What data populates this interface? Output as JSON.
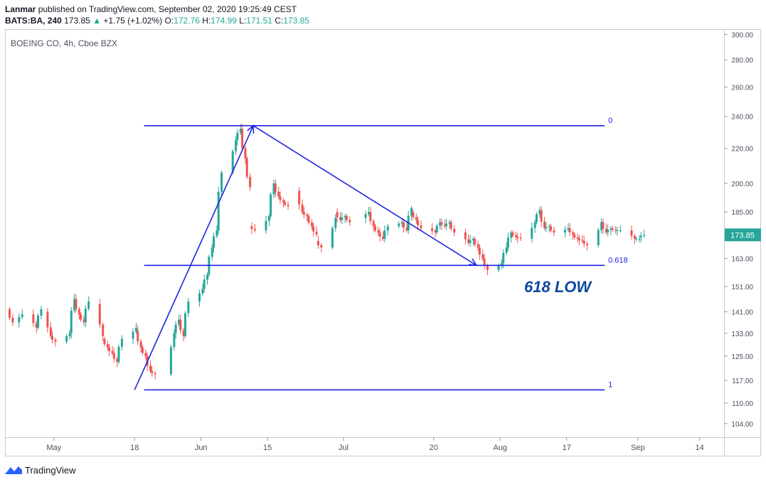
{
  "header": {
    "author": "Lanmar",
    "published_text": "published on TradingView.com, September 02, 2020 19:25:49 CEST",
    "symbol": "BATS:BA, 240",
    "last": "173.85",
    "change_arrow": "▲",
    "change": "+1.75 (+1.02%)",
    "o_label": "O:",
    "o": "172.76",
    "h_label": "H:",
    "h": "174.99",
    "l_label": "L:",
    "l": "171.51",
    "c_label": "C:",
    "c": "173.85"
  },
  "chart_title": "BOEING CO, 4h, Cboe BZX",
  "chart_data": {
    "type": "candlestick",
    "y_scale": "log",
    "ylim": [
      101,
      302
    ],
    "y_ticks": [
      104,
      110,
      117,
      125,
      133,
      141,
      151,
      163,
      174,
      185,
      200,
      220,
      240,
      260,
      280,
      300
    ],
    "y_tick_labels": [
      "104.00",
      "110.00",
      "117.00",
      "125.00",
      "133.00",
      "141.00",
      "151.00",
      "163.00",
      "",
      "185.00",
      "200.00",
      "220.00",
      "240.00",
      "260.00",
      "280.00",
      "300.00"
    ],
    "x_labels": [
      {
        "label": "May",
        "date": "2020-05-01"
      },
      {
        "label": "18",
        "date": "2020-05-18"
      },
      {
        "label": "Jun",
        "date": "2020-06-01"
      },
      {
        "label": "15",
        "date": "2020-06-15"
      },
      {
        "label": "Jul",
        "date": "2020-07-01"
      },
      {
        "label": "20",
        "date": "2020-07-20"
      },
      {
        "label": "Aug",
        "date": "2020-08-03"
      },
      {
        "label": "17",
        "date": "2020-08-17"
      },
      {
        "label": "Sep",
        "date": "2020-09-01"
      },
      {
        "label": "14",
        "date": "2020-09-14"
      }
    ],
    "last_price": "173.85",
    "colors": {
      "up": "#26a69a",
      "down": "#ef5350",
      "drawing": "#1f24e0",
      "label_blue": "#0d47a1",
      "price_tag": "#26a69a"
    },
    "fib_levels": [
      {
        "level": "0",
        "price": 234
      },
      {
        "level": "0.618",
        "price": 160
      },
      {
        "level": "1",
        "price": 114
      }
    ],
    "annotation": "618 LOW",
    "drawings": [
      {
        "type": "arrow",
        "from": {
          "date": "2020-05-18",
          "price": 114
        },
        "to": {
          "date": "2020-06-12",
          "price": 234
        }
      },
      {
        "type": "arrow",
        "from": {
          "date": "2020-06-12",
          "price": 234
        },
        "to": {
          "date": "2020-07-29",
          "price": 160
        }
      },
      {
        "type": "hline",
        "from_date": "2020-05-20",
        "to_date": "2020-08-25",
        "price": 234
      },
      {
        "type": "hline",
        "from_date": "2020-05-20",
        "to_date": "2020-08-25",
        "price": 160
      },
      {
        "type": "hline",
        "from_date": "2020-05-20",
        "to_date": "2020-08-25",
        "price": 114
      }
    ],
    "candles_by_day": [
      {
        "date": "2020-04-22",
        "o": 142,
        "c": 137
      },
      {
        "date": "2020-04-24",
        "o": 137,
        "c": 140
      },
      {
        "date": "2020-04-27",
        "o": 140,
        "c": 135
      },
      {
        "date": "2020-04-28",
        "o": 135,
        "c": 142
      },
      {
        "date": "2020-04-30",
        "o": 141,
        "c": 132
      },
      {
        "date": "2020-05-01",
        "o": 132,
        "c": 130
      },
      {
        "date": "2020-05-04",
        "o": 130,
        "c": 133
      },
      {
        "date": "2020-05-05",
        "o": 133,
        "c": 146
      },
      {
        "date": "2020-05-06",
        "o": 146,
        "c": 140
      },
      {
        "date": "2020-05-07",
        "o": 140,
        "c": 137
      },
      {
        "date": "2020-05-08",
        "o": 137,
        "c": 145
      },
      {
        "date": "2020-05-11",
        "o": 144,
        "c": 132
      },
      {
        "date": "2020-05-12",
        "o": 131,
        "c": 128
      },
      {
        "date": "2020-05-13",
        "o": 128,
        "c": 126
      },
      {
        "date": "2020-05-14",
        "o": 126,
        "c": 123
      },
      {
        "date": "2020-05-15",
        "o": 123,
        "c": 131
      },
      {
        "date": "2020-05-18",
        "o": 131,
        "c": 135
      },
      {
        "date": "2020-05-19",
        "o": 134,
        "c": 128
      },
      {
        "date": "2020-05-20",
        "o": 128,
        "c": 125
      },
      {
        "date": "2020-05-21",
        "o": 125,
        "c": 120
      },
      {
        "date": "2020-05-22",
        "o": 120,
        "c": 119
      },
      {
        "date": "2020-05-26",
        "o": 119,
        "c": 133
      },
      {
        "date": "2020-05-27",
        "o": 133,
        "c": 138
      },
      {
        "date": "2020-05-28",
        "o": 138,
        "c": 132
      },
      {
        "date": "2020-05-29",
        "o": 132,
        "c": 145
      },
      {
        "date": "2020-06-01",
        "o": 145,
        "c": 150
      },
      {
        "date": "2020-06-02",
        "o": 150,
        "c": 156
      },
      {
        "date": "2020-06-03",
        "o": 156,
        "c": 168
      },
      {
        "date": "2020-06-04",
        "o": 168,
        "c": 176
      },
      {
        "date": "2020-06-05",
        "o": 176,
        "c": 206
      },
      {
        "date": "2020-06-08",
        "o": 206,
        "c": 225
      },
      {
        "date": "2020-06-09",
        "o": 225,
        "c": 232
      },
      {
        "date": "2020-06-10",
        "o": 232,
        "c": 214
      },
      {
        "date": "2020-06-11",
        "o": 214,
        "c": 198
      },
      {
        "date": "2020-06-12",
        "o": 178,
        "c": 176
      },
      {
        "date": "2020-06-15",
        "o": 176,
        "c": 183
      },
      {
        "date": "2020-06-16",
        "o": 183,
        "c": 200
      },
      {
        "date": "2020-06-17",
        "o": 200,
        "c": 193
      },
      {
        "date": "2020-06-18",
        "o": 193,
        "c": 190
      },
      {
        "date": "2020-06-19",
        "o": 190,
        "c": 188
      },
      {
        "date": "2020-06-22",
        "o": 196,
        "c": 185
      },
      {
        "date": "2020-06-23",
        "o": 185,
        "c": 183
      },
      {
        "date": "2020-06-24",
        "o": 183,
        "c": 178
      },
      {
        "date": "2020-06-25",
        "o": 178,
        "c": 174
      },
      {
        "date": "2020-06-26",
        "o": 171,
        "c": 168
      },
      {
        "date": "2020-06-29",
        "o": 168,
        "c": 182
      },
      {
        "date": "2020-06-30",
        "o": 185,
        "c": 181
      },
      {
        "date": "2020-07-01",
        "o": 181,
        "c": 183
      },
      {
        "date": "2020-07-02",
        "o": 183,
        "c": 180
      },
      {
        "date": "2020-07-06",
        "o": 182,
        "c": 185
      },
      {
        "date": "2020-07-07",
        "o": 185,
        "c": 178
      },
      {
        "date": "2020-07-08",
        "o": 178,
        "c": 175
      },
      {
        "date": "2020-07-09",
        "o": 175,
        "c": 172
      },
      {
        "date": "2020-07-10",
        "o": 172,
        "c": 178
      },
      {
        "date": "2020-07-13",
        "o": 178,
        "c": 180
      },
      {
        "date": "2020-07-14",
        "o": 180,
        "c": 176
      },
      {
        "date": "2020-07-15",
        "o": 176,
        "c": 187
      },
      {
        "date": "2020-07-16",
        "o": 185,
        "c": 181
      },
      {
        "date": "2020-07-17",
        "o": 181,
        "c": 177
      },
      {
        "date": "2020-07-20",
        "o": 177,
        "c": 175
      },
      {
        "date": "2020-07-21",
        "o": 175,
        "c": 180
      },
      {
        "date": "2020-07-22",
        "o": 180,
        "c": 178
      },
      {
        "date": "2020-07-23",
        "o": 178,
        "c": 180
      },
      {
        "date": "2020-07-24",
        "o": 180,
        "c": 175
      },
      {
        "date": "2020-07-27",
        "o": 175,
        "c": 170
      },
      {
        "date": "2020-07-28",
        "o": 170,
        "c": 172
      },
      {
        "date": "2020-07-29",
        "o": 172,
        "c": 168
      },
      {
        "date": "2020-07-30",
        "o": 168,
        "c": 163
      },
      {
        "date": "2020-07-31",
        "o": 163,
        "c": 158
      },
      {
        "date": "2020-08-03",
        "o": 158,
        "c": 161
      },
      {
        "date": "2020-08-04",
        "o": 161,
        "c": 168
      },
      {
        "date": "2020-08-05",
        "o": 168,
        "c": 175
      },
      {
        "date": "2020-08-06",
        "o": 175,
        "c": 173
      },
      {
        "date": "2020-08-07",
        "o": 173,
        "c": 172
      },
      {
        "date": "2020-08-10",
        "o": 172,
        "c": 180
      },
      {
        "date": "2020-08-11",
        "o": 180,
        "c": 186
      },
      {
        "date": "2020-08-12",
        "o": 186,
        "c": 177
      },
      {
        "date": "2020-08-13",
        "o": 177,
        "c": 178
      },
      {
        "date": "2020-08-14",
        "o": 178,
        "c": 175
      },
      {
        "date": "2020-08-17",
        "o": 175,
        "c": 177
      },
      {
        "date": "2020-08-18",
        "o": 177,
        "c": 174
      },
      {
        "date": "2020-08-19",
        "o": 174,
        "c": 172
      },
      {
        "date": "2020-08-20",
        "o": 172,
        "c": 171
      },
      {
        "date": "2020-08-21",
        "o": 171,
        "c": 169
      },
      {
        "date": "2020-08-24",
        "o": 169,
        "c": 180
      },
      {
        "date": "2020-08-25",
        "o": 180,
        "c": 175
      },
      {
        "date": "2020-08-26",
        "o": 175,
        "c": 177
      },
      {
        "date": "2020-08-27",
        "o": 177,
        "c": 176
      },
      {
        "date": "2020-08-28",
        "o": 176,
        "c": 176
      },
      {
        "date": "2020-08-31",
        "o": 176,
        "c": 172
      },
      {
        "date": "2020-09-01",
        "o": 172,
        "c": 172
      },
      {
        "date": "2020-09-02",
        "o": 172.76,
        "c": 173.85
      }
    ]
  },
  "footer": {
    "brand": "TradingView"
  }
}
